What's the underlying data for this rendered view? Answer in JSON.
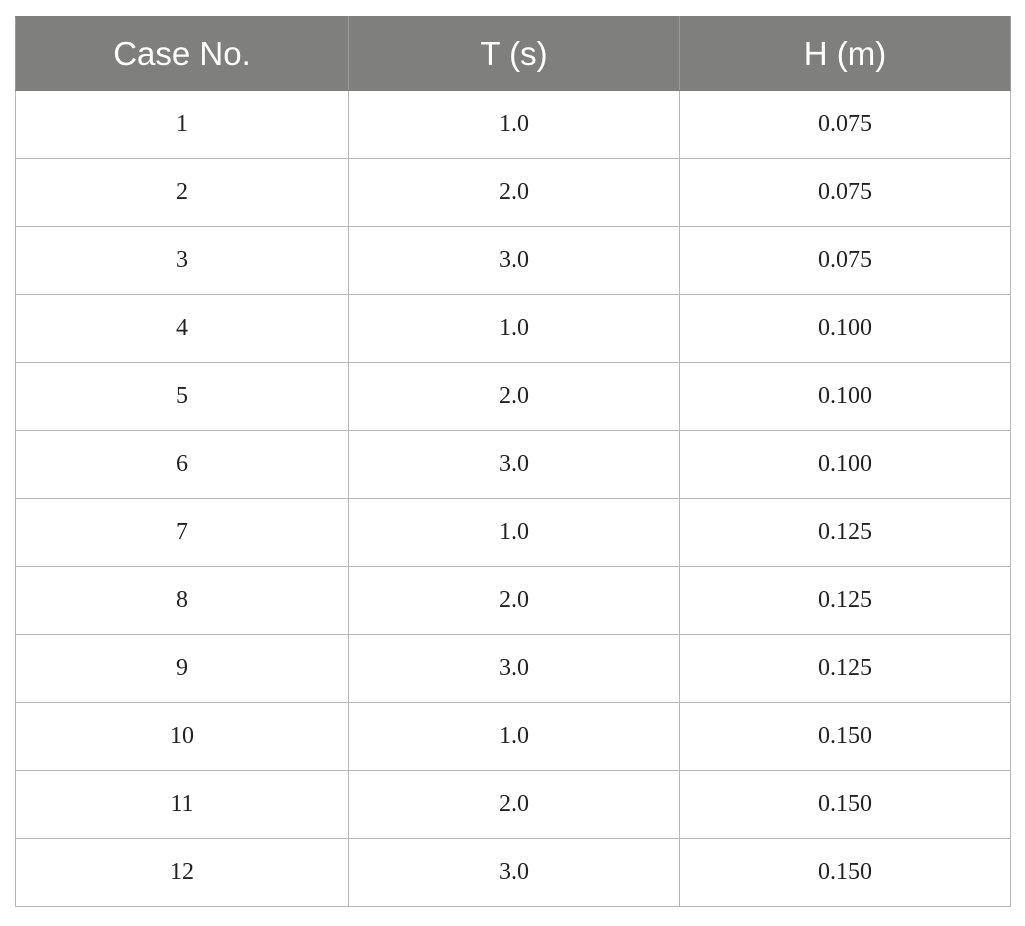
{
  "table": {
    "headers": [
      "Case No.",
      "T (s)",
      "H (m)"
    ],
    "rows": [
      [
        "1",
        "1.0",
        "0.075"
      ],
      [
        "2",
        "2.0",
        "0.075"
      ],
      [
        "3",
        "3.0",
        "0.075"
      ],
      [
        "4",
        "1.0",
        "0.100"
      ],
      [
        "5",
        "2.0",
        "0.100"
      ],
      [
        "6",
        "3.0",
        "0.100"
      ],
      [
        "7",
        "1.0",
        "0.125"
      ],
      [
        "8",
        "2.0",
        "0.125"
      ],
      [
        "9",
        "3.0",
        "0.125"
      ],
      [
        "10",
        "1.0",
        "0.150"
      ],
      [
        "11",
        "2.0",
        "0.150"
      ],
      [
        "12",
        "3.0",
        "0.150"
      ]
    ]
  },
  "colors": {
    "header_background": "#7f807e",
    "header_text": "#ffffff",
    "grid_line": "#b7b7b7"
  }
}
